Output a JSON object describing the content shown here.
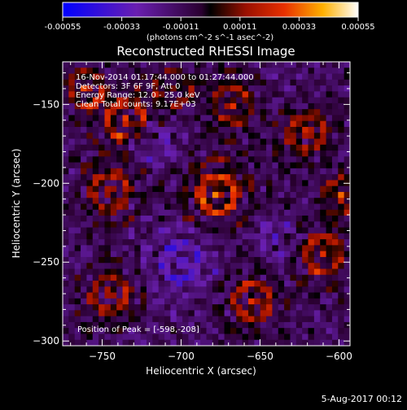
{
  "colorbar": {
    "ticks": [
      "-0.00055",
      "-0.00033",
      "-0.00011",
      "0.00011",
      "0.00033",
      "0.00055"
    ],
    "unit_label": "(photons cm^-2 s^-1 asec^-2)",
    "colormap": "rhessi-hot-blue"
  },
  "chart_data": {
    "type": "heatmap",
    "title": "Reconstructed RHESSI Image",
    "xlabel": "Heliocentric X (arcsec)",
    "ylabel": "Heliocentric Y (arcsec)",
    "xlim": [
      -775,
      -593
    ],
    "ylim": [
      -303,
      -123
    ],
    "xticks": [
      -750,
      -700,
      -650,
      -600
    ],
    "yticks": [
      -150,
      -200,
      -250,
      -300
    ],
    "value_range": [
      -0.00055,
      0.00055
    ],
    "annotations": [
      "16-Nov-2014 01:17:44.000 to 01:27:44.000",
      "Detectors: 3F 6F 9F, Att 0",
      "Energy Range: 12.0 - 25.0 keV",
      "Clean    Total counts: 9.17E+03"
    ],
    "peak_label": "Position of Peak = [-598,-208]",
    "peak": [
      -598,
      -208
    ],
    "blobs": [
      {
        "x": -760,
        "y": -140,
        "amp": 0.00042,
        "sigma": 10
      },
      {
        "x": -735,
        "y": -160,
        "amp": 0.0005,
        "sigma": 13
      },
      {
        "x": -705,
        "y": -140,
        "amp": 0.0003,
        "sigma": 11
      },
      {
        "x": -668,
        "y": -150,
        "amp": 0.0004,
        "sigma": 12
      },
      {
        "x": -620,
        "y": -168,
        "amp": 0.00045,
        "sigma": 12
      },
      {
        "x": -598,
        "y": -208,
        "amp": 0.00055,
        "sigma": 8
      },
      {
        "x": -677,
        "y": -207,
        "amp": 0.00052,
        "sigma": 15
      },
      {
        "x": -745,
        "y": -205,
        "amp": 0.0004,
        "sigma": 14
      },
      {
        "x": -610,
        "y": -245,
        "amp": 0.00045,
        "sigma": 13
      },
      {
        "x": -745,
        "y": -270,
        "amp": 0.0004,
        "sigma": 13
      },
      {
        "x": -655,
        "y": -275,
        "amp": 0.00042,
        "sigma": 13
      },
      {
        "x": -700,
        "y": -250,
        "amp": -0.0003,
        "sigma": 16
      },
      {
        "x": -720,
        "y": -175,
        "amp": -0.00025,
        "sigma": 12
      },
      {
        "x": -640,
        "y": -235,
        "amp": -0.00022,
        "sigma": 10
      }
    ]
  },
  "footer": {
    "timestamp": "5-Aug-2017 00:12"
  }
}
